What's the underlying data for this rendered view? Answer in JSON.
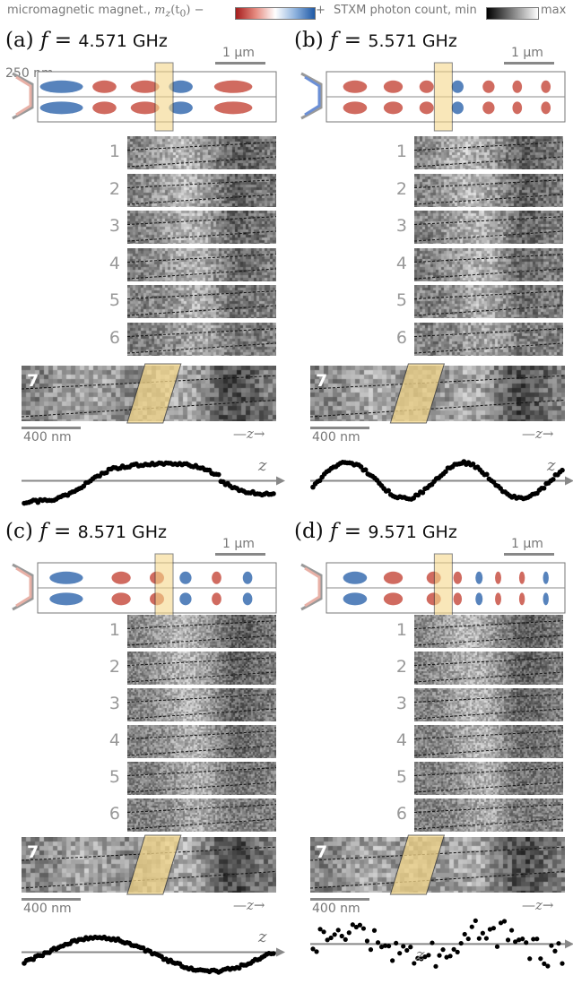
{
  "header": {
    "colorbar_left_label": "micromagnetic magnet., ",
    "colorbar_left_math": "m",
    "colorbar_left_sub": "z",
    "colorbar_left_arg": "(t",
    "colorbar_left_arg_sub": "0",
    "colorbar_left_arg_end": ")",
    "minus": "−",
    "plus": "+",
    "colorbar_right_label": "STXM photon count, min",
    "colorbar_right_max": "max"
  },
  "panels": [
    {
      "id": "a",
      "tag": "(a)",
      "f": "f",
      "eq": "=",
      "freq": "4.571 GHz",
      "scale_um": "1 μm",
      "scale_nm": "400 nm",
      "width_label": "250 nm",
      "rows": [
        "1",
        "2",
        "3",
        "4",
        "5",
        "6"
      ],
      "big": "7",
      "z_arrow": "z",
      "z_axis": "z"
    },
    {
      "id": "b",
      "tag": "(b)",
      "f": "f",
      "eq": "=",
      "freq": "5.571 GHz",
      "scale_um": "1 μm",
      "scale_nm": "400 nm",
      "rows": [
        "1",
        "2",
        "3",
        "4",
        "5",
        "6"
      ],
      "big": "7",
      "z_arrow": "z",
      "z_axis": "z"
    },
    {
      "id": "c",
      "tag": "(c)",
      "f": "f",
      "eq": "=",
      "freq": "8.571 GHz",
      "scale_um": "1 μm",
      "scale_nm": "400 nm",
      "rows": [
        "1",
        "2",
        "3",
        "4",
        "5",
        "6"
      ],
      "big": "7",
      "z_arrow": "z",
      "z_axis": "z"
    },
    {
      "id": "d",
      "tag": "(d)",
      "f": "f",
      "eq": "=",
      "freq": "9.571 GHz",
      "scale_um": "1 μm",
      "scale_nm": "400 nm",
      "rows": [
        "1",
        "2",
        "3",
        "4",
        "5",
        "6"
      ],
      "big": "7",
      "z_arrow": "z",
      "z_axis": "z"
    }
  ],
  "colors": {
    "red": "#c0392b",
    "blue": "#1f5aa6",
    "highlight": "#f5d78a",
    "text_gray": "#777777"
  }
}
